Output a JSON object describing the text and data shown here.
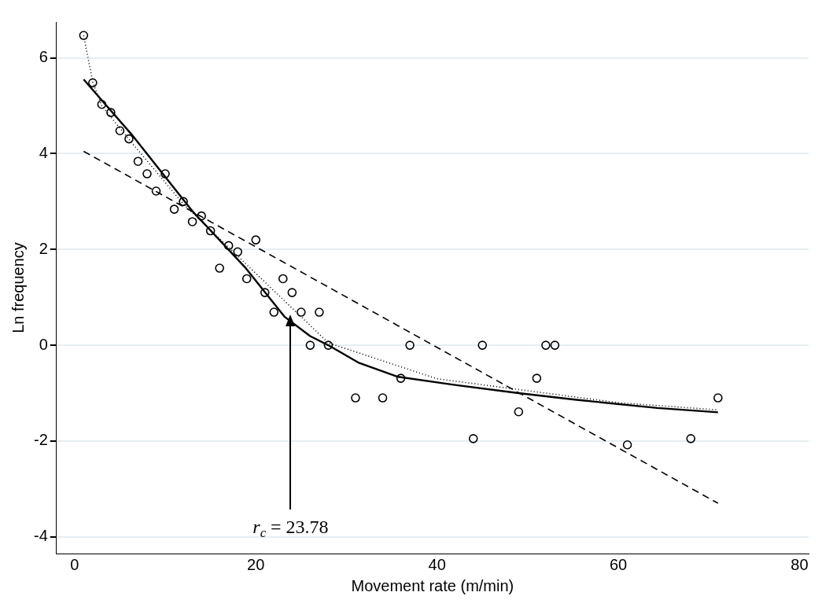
{
  "chart_data": {
    "type": "scatter",
    "xlabel": "Movement rate (m/min)",
    "ylabel": "Ln frequency",
    "xlim": [
      -2,
      81
    ],
    "ylim": [
      -4.35,
      6.75
    ],
    "xticks": [
      0,
      20,
      40,
      60,
      80
    ],
    "yticks": [
      -4,
      -2,
      0,
      2,
      4,
      6
    ],
    "grid": "y",
    "marker": "circle",
    "series": [
      {
        "color": "#000000",
        "x": [
          1,
          2,
          3,
          4,
          5,
          6,
          7,
          8,
          9,
          10,
          11,
          12,
          13,
          14,
          15,
          16,
          17,
          18,
          19,
          20,
          21,
          22,
          23,
          24,
          25,
          26,
          27,
          28,
          31,
          34,
          36,
          37,
          44,
          45,
          49,
          51,
          52,
          53,
          61,
          68,
          71
        ],
        "values": [
          6.47,
          5.48,
          5.03,
          4.86,
          4.48,
          4.31,
          3.84,
          3.58,
          3.22,
          3.58,
          2.84,
          3.0,
          2.58,
          2.7,
          2.39,
          1.61,
          2.08,
          1.95,
          1.39,
          2.2,
          1.1,
          0.69,
          1.39,
          1.1,
          0.69,
          0,
          0.69,
          0,
          -1.1,
          -1.1,
          -0.69,
          0,
          -1.95,
          0,
          -1.39,
          -0.69,
          0,
          0,
          -2.08,
          -1.95,
          -1.1
        ]
      },
      {
        "type": "line",
        "color": "#000000",
        "marker": "none",
        "line_style": "dashed",
        "x": [
          1,
          71
        ],
        "values": [
          4.05,
          -3.3
        ]
      },
      {
        "type": "line",
        "color": "#000000",
        "marker": "none",
        "line_style": "solid",
        "x": [
          1,
          6.3,
          13,
          18.8,
          23.2,
          26,
          28,
          31.3,
          35.7,
          42,
          49,
          55.4,
          64.3,
          71
        ],
        "values": [
          5.55,
          4.4,
          2.8,
          1.63,
          0.59,
          0.19,
          0,
          -0.36,
          -0.66,
          -0.83,
          -1.0,
          -1.14,
          -1.31,
          -1.4
        ]
      },
      {
        "type": "line",
        "color": "#000000",
        "marker": "none",
        "line_style": "dotted",
        "x": [
          1,
          2,
          3,
          6,
          12,
          20,
          28,
          40,
          50,
          60,
          71
        ],
        "values": [
          6.47,
          5.5,
          5.0,
          4.3,
          2.95,
          1.5,
          0.05,
          -0.7,
          -0.95,
          -1.2,
          -1.35
        ]
      }
    ],
    "annotations": [
      {
        "text": "r$_{c}$ = 23.78",
        "x": 23.78
      }
    ]
  }
}
